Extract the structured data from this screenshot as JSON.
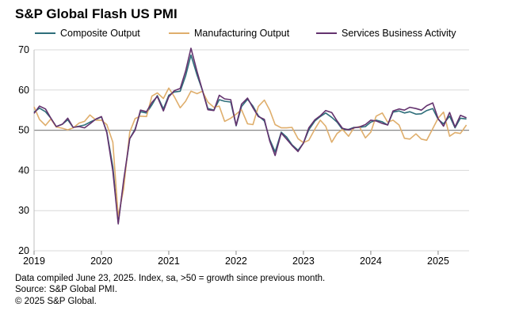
{
  "title": "S&P Global Flash US PMI",
  "footer": {
    "line1": "Data compiled June 23, 2025. Index, sa, >50 = growth since previous month.",
    "line2": "Source: S&P Global PMI.",
    "line3": "© 2025 S&P Global."
  },
  "chart_data": {
    "type": "line",
    "xlim": [
      2019.0,
      2025.46
    ],
    "ylim": [
      20,
      70
    ],
    "yticks": [
      20,
      30,
      40,
      50,
      60,
      70
    ],
    "xticks": [
      "2019",
      "2020",
      "2021",
      "2022",
      "2023",
      "2024",
      "2025"
    ],
    "x_tick_values": [
      2019,
      2020,
      2021,
      2022,
      2023,
      2024,
      2025
    ],
    "reference_line": 50,
    "grid": true,
    "legend_position": "top",
    "series": [
      {
        "name": "Composite Output",
        "color": "#2e6e7a",
        "x": [
          2019.0,
          2019.08,
          2019.17,
          2019.25,
          2019.33,
          2019.42,
          2019.5,
          2019.58,
          2019.67,
          2019.75,
          2019.83,
          2019.92,
          2020.0,
          2020.08,
          2020.17,
          2020.25,
          2020.33,
          2020.42,
          2020.5,
          2020.58,
          2020.67,
          2020.75,
          2020.83,
          2020.92,
          2021.0,
          2021.08,
          2021.17,
          2021.25,
          2021.33,
          2021.42,
          2021.5,
          2021.58,
          2021.67,
          2021.75,
          2021.83,
          2021.92,
          2022.0,
          2022.08,
          2022.17,
          2022.25,
          2022.33,
          2022.42,
          2022.5,
          2022.58,
          2022.67,
          2022.75,
          2022.83,
          2022.92,
          2023.0,
          2023.08,
          2023.17,
          2023.25,
          2023.33,
          2023.42,
          2023.5,
          2023.58,
          2023.67,
          2023.75,
          2023.83,
          2023.92,
          2024.0,
          2024.08,
          2024.17,
          2024.25,
          2024.33,
          2024.42,
          2024.5,
          2024.58,
          2024.67,
          2024.75,
          2024.83,
          2024.92,
          2025.0,
          2025.08,
          2025.17,
          2025.25,
          2025.33,
          2025.42
        ],
        "values": [
          54.5,
          55.5,
          54.6,
          53.0,
          50.9,
          51.5,
          52.6,
          50.7,
          51.0,
          51.3,
          52.0,
          52.7,
          53.3,
          49.6,
          40.9,
          27.0,
          37.0,
          47.9,
          50.3,
          54.6,
          54.3,
          56.3,
          58.6,
          55.3,
          58.7,
          59.5,
          59.7,
          63.5,
          68.7,
          63.7,
          59.9,
          55.4,
          55.0,
          57.6,
          57.2,
          57.0,
          51.1,
          55.9,
          57.7,
          56.0,
          53.6,
          52.3,
          47.7,
          44.6,
          49.5,
          48.3,
          46.4,
          45.0,
          46.8,
          50.1,
          52.3,
          53.4,
          54.3,
          53.2,
          52.0,
          50.2,
          50.2,
          50.7,
          50.7,
          50.9,
          52.0,
          52.5,
          52.1,
          51.3,
          54.5,
          54.8,
          54.3,
          54.6,
          54.0,
          54.1,
          54.9,
          55.4,
          52.7,
          51.6,
          53.5,
          50.6,
          53.0,
          52.8
        ]
      },
      {
        "name": "Manufacturing Output",
        "color": "#dfae6c",
        "x": [
          2019.0,
          2019.08,
          2019.17,
          2019.25,
          2019.33,
          2019.42,
          2019.5,
          2019.58,
          2019.67,
          2019.75,
          2019.83,
          2019.92,
          2020.0,
          2020.08,
          2020.17,
          2020.25,
          2020.33,
          2020.42,
          2020.5,
          2020.58,
          2020.67,
          2020.75,
          2020.83,
          2020.92,
          2021.0,
          2021.08,
          2021.17,
          2021.25,
          2021.33,
          2021.42,
          2021.5,
          2021.58,
          2021.67,
          2021.75,
          2021.83,
          2021.92,
          2022.0,
          2022.08,
          2022.17,
          2022.25,
          2022.33,
          2022.42,
          2022.5,
          2022.58,
          2022.67,
          2022.75,
          2022.83,
          2022.92,
          2023.0,
          2023.08,
          2023.17,
          2023.25,
          2023.33,
          2023.42,
          2023.5,
          2023.58,
          2023.67,
          2023.75,
          2023.83,
          2023.92,
          2024.0,
          2024.08,
          2024.17,
          2024.25,
          2024.33,
          2024.42,
          2024.5,
          2024.58,
          2024.67,
          2024.75,
          2024.83,
          2024.92,
          2025.0,
          2025.08,
          2025.17,
          2025.25,
          2025.33,
          2025.42
        ],
        "values": [
          55.8,
          52.7,
          51.2,
          52.8,
          50.8,
          50.5,
          50.1,
          50.6,
          51.8,
          52.2,
          53.8,
          52.5,
          52.5,
          51.4,
          47.0,
          28.5,
          35.4,
          49.5,
          52.9,
          53.5,
          53.4,
          58.5,
          59.3,
          57.9,
          60.5,
          58.4,
          55.6,
          57.2,
          59.7,
          59.1,
          59.7,
          57.0,
          55.7,
          56.0,
          52.2,
          53.0,
          54.0,
          55.1,
          51.6,
          51.4,
          55.9,
          57.5,
          55.0,
          51.4,
          50.6,
          50.6,
          50.7,
          47.9,
          46.9,
          47.5,
          50.3,
          52.5,
          51.0,
          47.0,
          49.2,
          50.2,
          48.5,
          50.6,
          50.9,
          48.1,
          49.5,
          53.5,
          54.3,
          52.0,
          52.5,
          51.3,
          48.0,
          47.8,
          49.1,
          47.8,
          47.5,
          50.4,
          53.0,
          54.5,
          48.5,
          49.4,
          49.2,
          51.3
        ]
      },
      {
        "name": "Services Business Activity",
        "color": "#63326e",
        "x": [
          2019.0,
          2019.08,
          2019.17,
          2019.25,
          2019.33,
          2019.42,
          2019.5,
          2019.58,
          2019.67,
          2019.75,
          2019.83,
          2019.92,
          2020.0,
          2020.08,
          2020.17,
          2020.25,
          2020.33,
          2020.42,
          2020.5,
          2020.58,
          2020.67,
          2020.75,
          2020.83,
          2020.92,
          2021.0,
          2021.08,
          2021.17,
          2021.25,
          2021.33,
          2021.42,
          2021.5,
          2021.58,
          2021.67,
          2021.75,
          2021.83,
          2021.92,
          2022.0,
          2022.08,
          2022.17,
          2022.25,
          2022.33,
          2022.42,
          2022.5,
          2022.58,
          2022.67,
          2022.75,
          2022.83,
          2022.92,
          2023.0,
          2023.08,
          2023.17,
          2023.25,
          2023.33,
          2023.42,
          2023.5,
          2023.58,
          2023.67,
          2023.75,
          2023.83,
          2023.92,
          2024.0,
          2024.08,
          2024.17,
          2024.25,
          2024.33,
          2024.42,
          2024.5,
          2024.58,
          2024.67,
          2024.75,
          2024.83,
          2024.92,
          2025.0,
          2025.08,
          2025.17,
          2025.25,
          2025.33,
          2025.42
        ],
        "values": [
          54.2,
          56.0,
          55.3,
          53.0,
          50.9,
          51.5,
          53.0,
          50.7,
          50.9,
          50.6,
          51.6,
          52.8,
          53.4,
          49.4,
          39.8,
          26.7,
          37.5,
          47.9,
          50.0,
          55.0,
          54.6,
          56.9,
          58.4,
          54.8,
          58.3,
          59.8,
          60.4,
          64.7,
          70.4,
          64.6,
          59.9,
          55.1,
          54.9,
          58.7,
          57.8,
          57.6,
          51.2,
          56.5,
          58.0,
          55.6,
          53.4,
          52.7,
          47.3,
          43.7,
          49.3,
          47.8,
          46.2,
          44.7,
          46.8,
          50.6,
          52.6,
          53.6,
          54.9,
          54.4,
          52.3,
          50.5,
          50.1,
          50.6,
          50.8,
          51.4,
          52.5,
          52.3,
          51.7,
          51.3,
          54.8,
          55.3,
          55.0,
          55.7,
          55.4,
          55.0,
          56.1,
          56.8,
          52.9,
          51.0,
          54.4,
          50.8,
          53.7,
          53.1
        ]
      }
    ]
  }
}
